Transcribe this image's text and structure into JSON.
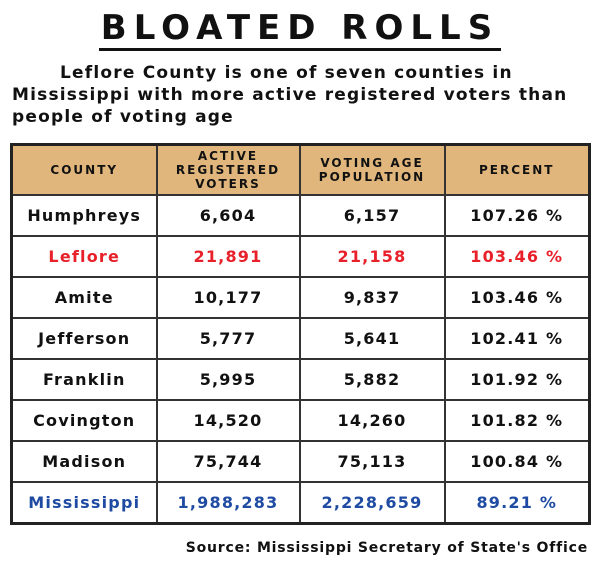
{
  "title": "BLOATED ROLLS",
  "subtitle": "Leflore County is one of seven counties in Mississippi with more active registered voters than people of voting age",
  "colors": {
    "header": "#e1b67c",
    "highlight": "#e8202a",
    "state": "#1f4ba3"
  },
  "chart_data": {
    "type": "table",
    "columns": [
      "COUNTY",
      "ACTIVE REGISTERED VOTERS",
      "VOTING AGE POPULATION",
      "PERCENT"
    ],
    "rows": [
      [
        "Humphreys",
        "6,604",
        "6,157",
        "107.26 %"
      ],
      [
        "Leflore",
        "21,891",
        "21,158",
        "103.46 %"
      ],
      [
        "Amite",
        "10,177",
        "9,837",
        "103.46 %"
      ],
      [
        "Jefferson",
        "5,777",
        "5,641",
        "102.41 %"
      ],
      [
        "Franklin",
        "5,995",
        "5,882",
        "101.92 %"
      ],
      [
        "Covington",
        "14,520",
        "14,260",
        "101.82 %"
      ],
      [
        "Madison",
        "75,744",
        "75,113",
        "100.84 %"
      ],
      [
        "Mississippi",
        "1,988,283",
        "2,228,659",
        "89.21 %"
      ]
    ]
  },
  "source": "Source: Mississippi Secretary of State's Office"
}
